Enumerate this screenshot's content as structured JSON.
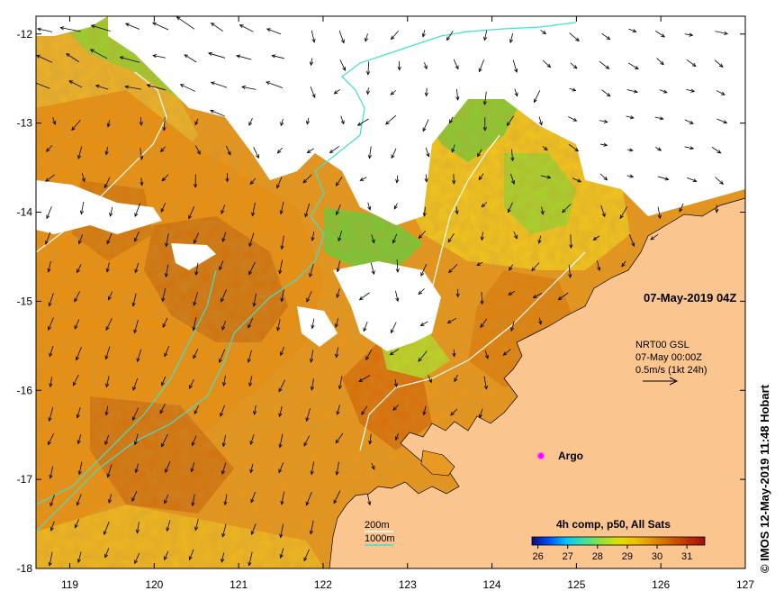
{
  "map": {
    "x_ticks": [
      "119",
      "120",
      "121",
      "122",
      "123",
      "124",
      "125",
      "126",
      "127"
    ],
    "y_ticks": [
      "-12",
      "-13",
      "-14",
      "-15",
      "-16",
      "-17",
      "-18"
    ],
    "lon_range": [
      118.6,
      127.0
    ],
    "lat_range": [
      -18.0,
      -11.8
    ]
  },
  "annotations": {
    "timestamp": "07-May-2019 04Z",
    "current_source": "NRT00 GSL",
    "current_time": "07-May 00:00Z",
    "current_scale": "0.5m/s (1kt 24h)",
    "argo_label": "Argo"
  },
  "depth_legend": {
    "line1": "200m",
    "line2": "1000m",
    "line1_color": "#ffffff",
    "line2_color": "#40e0d0"
  },
  "colorbar": {
    "title": "4h comp, p50, All Sats",
    "ticks": [
      "26",
      "27",
      "28",
      "29",
      "30",
      "31"
    ],
    "colors": [
      "#0a0a80",
      "#0050ff",
      "#00c8ff",
      "#40e0a0",
      "#90e040",
      "#e0e000",
      "#f0c000",
      "#e09000",
      "#d06000",
      "#c03000",
      "#a01010"
    ]
  },
  "colors": {
    "land": "#fbc590",
    "argo": "#ff00ff",
    "sst_warm": "#e48a16",
    "sst_mid": "#eec020",
    "sst_cool": "#c8d828",
    "sst_green": "#58c038"
  },
  "credit": "© IMOS 12-May-2019 11:48 Hobart"
}
